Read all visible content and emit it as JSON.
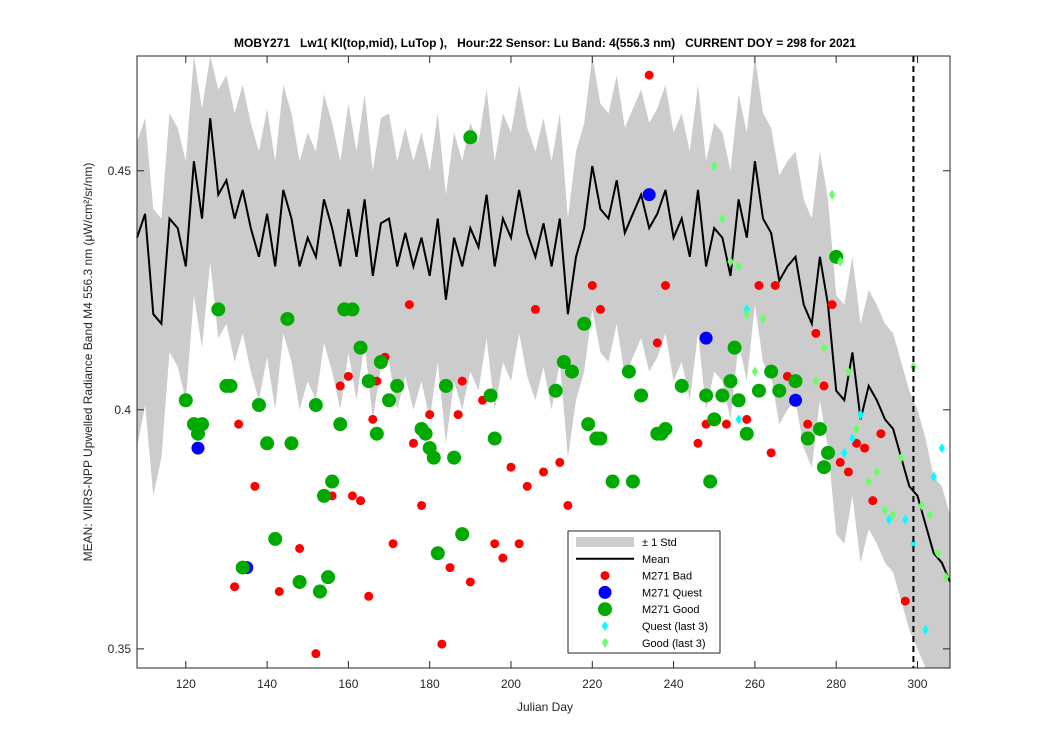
{
  "chart_data": {
    "type": "scatter",
    "title": "MOBY271   Lw1( Kl(top,mid), LuTop ),   Hour:22 Sensor: Lu Band: 4(556.3 nm)   CURRENT DOY = 298 for 2021",
    "xlabel": "Julian Day",
    "ylabel": "MEAN: VIIRS-NPP Upwelled Radiance Band M4 556.3 nm (μW/cm²/sr/nm)",
    "xlim": [
      108,
      308
    ],
    "ylim": [
      0.346,
      0.474
    ],
    "xticks": [
      120,
      140,
      160,
      180,
      200,
      220,
      240,
      260,
      280,
      300
    ],
    "yticks": [
      0.35,
      0.4,
      0.45
    ],
    "ytick_labels": [
      "0.35",
      "0.4",
      "0.45"
    ],
    "grid": false,
    "legend_position": "bottom-center",
    "current_doy": 298,
    "current_doy_line_x": 299,
    "colors": {
      "band": "#cccccc",
      "mean": "#000000",
      "bad": "#ff0000",
      "quest": "#0000ff",
      "good": "#00aa00",
      "quest_last3": "#00ffff",
      "good_last3": "#66ff66"
    },
    "legend": [
      {
        "key": "band",
        "label": "± 1 Std"
      },
      {
        "key": "mean",
        "label": "Mean"
      },
      {
        "key": "bad",
        "label": "M271 Bad"
      },
      {
        "key": "quest",
        "label": "M271 Quest"
      },
      {
        "key": "good",
        "label": "M271 Good"
      },
      {
        "key": "quest_last3",
        "label": "Quest (last 3)"
      },
      {
        "key": "good_last3",
        "label": "Good (last 3)"
      }
    ],
    "mean": {
      "x": [
        108,
        110,
        112,
        114,
        116,
        118,
        120,
        122,
        124,
        126,
        128,
        130,
        132,
        134,
        136,
        138,
        140,
        142,
        144,
        146,
        148,
        150,
        152,
        154,
        156,
        158,
        160,
        162,
        164,
        166,
        168,
        170,
        172,
        174,
        176,
        178,
        180,
        182,
        184,
        186,
        188,
        190,
        192,
        194,
        196,
        198,
        200,
        202,
        204,
        206,
        208,
        210,
        212,
        214,
        216,
        218,
        220,
        222,
        224,
        226,
        228,
        230,
        232,
        234,
        236,
        238,
        240,
        242,
        244,
        246,
        248,
        250,
        252,
        254,
        256,
        258,
        260,
        262,
        264,
        266,
        268,
        270,
        272,
        274,
        276,
        278,
        280,
        282,
        284,
        286,
        288,
        290,
        292,
        294,
        296,
        298,
        300,
        302,
        304,
        306,
        308
      ],
      "y": [
        0.436,
        0.441,
        0.42,
        0.418,
        0.44,
        0.438,
        0.43,
        0.452,
        0.44,
        0.461,
        0.445,
        0.448,
        0.44,
        0.446,
        0.438,
        0.432,
        0.441,
        0.43,
        0.446,
        0.44,
        0.43,
        0.436,
        0.432,
        0.444,
        0.438,
        0.43,
        0.442,
        0.432,
        0.444,
        0.428,
        0.439,
        0.44,
        0.43,
        0.437,
        0.43,
        0.436,
        0.428,
        0.44,
        0.423,
        0.436,
        0.43,
        0.438,
        0.434,
        0.445,
        0.43,
        0.44,
        0.436,
        0.446,
        0.437,
        0.432,
        0.439,
        0.43,
        0.44,
        0.42,
        0.432,
        0.438,
        0.451,
        0.442,
        0.44,
        0.448,
        0.437,
        0.441,
        0.445,
        0.438,
        0.441,
        0.446,
        0.436,
        0.44,
        0.432,
        0.446,
        0.43,
        0.438,
        0.436,
        0.428,
        0.444,
        0.436,
        0.452,
        0.44,
        0.437,
        0.427,
        0.43,
        0.432,
        0.422,
        0.418,
        0.432,
        0.422,
        0.404,
        0.402,
        0.412,
        0.398,
        0.405,
        0.402,
        0.398,
        0.396,
        0.39,
        0.384,
        0.382,
        0.376,
        0.37,
        0.368,
        0.364
      ],
      "std_upper": [
        0.456,
        0.461,
        0.442,
        0.44,
        0.462,
        0.459,
        0.452,
        0.474,
        0.463,
        0.474,
        0.467,
        0.47,
        0.462,
        0.468,
        0.46,
        0.454,
        0.463,
        0.452,
        0.468,
        0.462,
        0.452,
        0.458,
        0.454,
        0.466,
        0.46,
        0.452,
        0.464,
        0.454,
        0.466,
        0.45,
        0.461,
        0.462,
        0.452,
        0.459,
        0.452,
        0.458,
        0.45,
        0.462,
        0.445,
        0.458,
        0.452,
        0.46,
        0.456,
        0.467,
        0.452,
        0.462,
        0.458,
        0.468,
        0.459,
        0.454,
        0.461,
        0.452,
        0.462,
        0.44,
        0.454,
        0.46,
        0.474,
        0.464,
        0.462,
        0.47,
        0.459,
        0.463,
        0.467,
        0.46,
        0.463,
        0.468,
        0.458,
        0.462,
        0.454,
        0.468,
        0.452,
        0.46,
        0.458,
        0.45,
        0.466,
        0.458,
        0.474,
        0.462,
        0.459,
        0.449,
        0.452,
        0.454,
        0.444,
        0.44,
        0.454,
        0.444,
        0.424,
        0.422,
        0.432,
        0.418,
        0.425,
        0.422,
        0.418,
        0.416,
        0.41,
        0.404,
        0.4,
        0.394,
        0.386,
        0.384,
        0.378
      ],
      "std_lower": [
        0.392,
        0.401,
        0.382,
        0.39,
        0.412,
        0.409,
        0.402,
        0.424,
        0.413,
        0.431,
        0.415,
        0.418,
        0.41,
        0.416,
        0.408,
        0.402,
        0.411,
        0.4,
        0.416,
        0.41,
        0.4,
        0.406,
        0.402,
        0.414,
        0.408,
        0.4,
        0.412,
        0.402,
        0.414,
        0.398,
        0.409,
        0.41,
        0.4,
        0.407,
        0.4,
        0.406,
        0.398,
        0.41,
        0.393,
        0.406,
        0.4,
        0.408,
        0.404,
        0.415,
        0.4,
        0.41,
        0.406,
        0.416,
        0.407,
        0.402,
        0.409,
        0.4,
        0.41,
        0.39,
        0.402,
        0.408,
        0.421,
        0.412,
        0.41,
        0.418,
        0.407,
        0.411,
        0.415,
        0.408,
        0.411,
        0.416,
        0.406,
        0.41,
        0.402,
        0.416,
        0.4,
        0.408,
        0.406,
        0.398,
        0.414,
        0.406,
        0.422,
        0.41,
        0.407,
        0.397,
        0.4,
        0.402,
        0.392,
        0.388,
        0.402,
        0.392,
        0.374,
        0.372,
        0.382,
        0.368,
        0.375,
        0.372,
        0.368,
        0.366,
        0.36,
        0.354,
        0.35,
        0.346,
        0.346,
        0.346,
        0.346
      ]
    },
    "series": [
      {
        "key": "bad",
        "name": "M271 Bad",
        "marker": "circle",
        "x": [
          132,
          133,
          137,
          143,
          148,
          152,
          156,
          158,
          160,
          161,
          163,
          165,
          166,
          167,
          169,
          171,
          175,
          176,
          178,
          180,
          183,
          185,
          187,
          188,
          190,
          193,
          196,
          198,
          200,
          202,
          204,
          206,
          208,
          212,
          214,
          220,
          222,
          234,
          236,
          238,
          246,
          248,
          253,
          258,
          261,
          264,
          265,
          268,
          273,
          275,
          277,
          279,
          281,
          283,
          285,
          287,
          289,
          291,
          297
        ],
        "y": [
          0.363,
          0.397,
          0.384,
          0.362,
          0.371,
          0.349,
          0.382,
          0.405,
          0.407,
          0.382,
          0.381,
          0.361,
          0.398,
          0.406,
          0.411,
          0.372,
          0.422,
          0.393,
          0.38,
          0.399,
          0.351,
          0.367,
          0.399,
          0.406,
          0.364,
          0.402,
          0.372,
          0.369,
          0.388,
          0.372,
          0.384,
          0.421,
          0.387,
          0.389,
          0.38,
          0.426,
          0.421,
          0.47,
          0.414,
          0.426,
          0.393,
          0.397,
          0.397,
          0.398,
          0.426,
          0.391,
          0.426,
          0.407,
          0.397,
          0.416,
          0.405,
          0.422,
          0.389,
          0.387,
          0.393,
          0.392,
          0.381,
          0.395,
          0.36
        ]
      },
      {
        "key": "quest",
        "name": "M271 Quest",
        "marker": "circle",
        "x": [
          123,
          135,
          234,
          248,
          270
        ],
        "y": [
          0.392,
          0.367,
          0.445,
          0.415,
          0.402
        ]
      },
      {
        "key": "good",
        "name": "M271 Good",
        "marker": "circle",
        "x": [
          120,
          122,
          123,
          124,
          128,
          130,
          131,
          134,
          138,
          140,
          142,
          145,
          146,
          148,
          152,
          153,
          154,
          155,
          156,
          158,
          159,
          161,
          163,
          165,
          167,
          168,
          170,
          172,
          178,
          179,
          180,
          181,
          182,
          184,
          186,
          188,
          190,
          195,
          196,
          211,
          213,
          215,
          218,
          219,
          221,
          222,
          225,
          229,
          230,
          232,
          236,
          237,
          238,
          242,
          248,
          249,
          250,
          252,
          254,
          255,
          256,
          258,
          261,
          264,
          266,
          270,
          273,
          276,
          277,
          278,
          280
        ],
        "y": [
          0.402,
          0.397,
          0.395,
          0.397,
          0.421,
          0.405,
          0.405,
          0.367,
          0.401,
          0.393,
          0.373,
          0.419,
          0.393,
          0.364,
          0.401,
          0.362,
          0.382,
          0.365,
          0.385,
          0.397,
          0.421,
          0.421,
          0.413,
          0.406,
          0.395,
          0.41,
          0.402,
          0.405,
          0.396,
          0.395,
          0.392,
          0.39,
          0.37,
          0.405,
          0.39,
          0.374,
          0.457,
          0.403,
          0.394,
          0.404,
          0.41,
          0.408,
          0.418,
          0.397,
          0.394,
          0.394,
          0.385,
          0.408,
          0.385,
          0.403,
          0.395,
          0.395,
          0.396,
          0.405,
          0.403,
          0.385,
          0.398,
          0.403,
          0.406,
          0.413,
          0.402,
          0.395,
          0.404,
          0.408,
          0.404,
          0.406,
          0.394,
          0.396,
          0.388,
          0.391,
          0.432
        ]
      },
      {
        "key": "quest_last3",
        "name": "Quest (last 3)",
        "marker": "diamond",
        "x": [
          256,
          258,
          282,
          284,
          286,
          293,
          297,
          299,
          302,
          304,
          306
        ],
        "y": [
          0.398,
          0.421,
          0.391,
          0.394,
          0.399,
          0.377,
          0.377,
          0.372,
          0.354,
          0.386,
          0.392
        ]
      },
      {
        "key": "good_last3",
        "name": "Good (last 3)",
        "marker": "diamond",
        "x": [
          250,
          252,
          254,
          256,
          258,
          260,
          262,
          275,
          277,
          279,
          281,
          283,
          285,
          288,
          290,
          292,
          294,
          296,
          299,
          301,
          303,
          305,
          307
        ],
        "y": [
          0.451,
          0.44,
          0.431,
          0.43,
          0.42,
          0.408,
          0.419,
          0.406,
          0.413,
          0.445,
          0.431,
          0.408,
          0.396,
          0.385,
          0.387,
          0.379,
          0.378,
          0.39,
          0.409,
          0.38,
          0.378,
          0.37,
          0.365
        ]
      }
    ]
  }
}
